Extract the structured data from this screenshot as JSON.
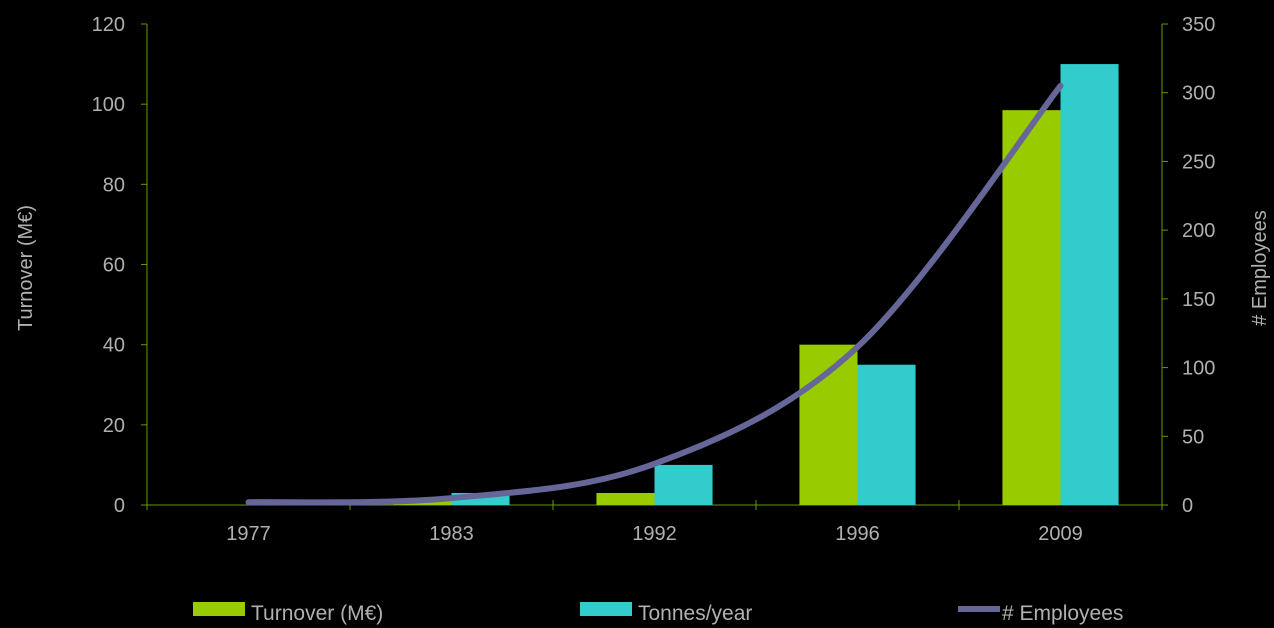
{
  "chart_data": {
    "type": "bar",
    "categories": [
      "1977",
      "1983",
      "1992",
      "1996",
      "2009"
    ],
    "series": [
      {
        "name": "Turnover (M€)",
        "type": "bar",
        "axis": "left",
        "color": "#99cc00",
        "values": [
          0,
          1,
          3,
          40,
          98.5
        ]
      },
      {
        "name": "Tonnes/year",
        "type": "bar",
        "axis": "left",
        "color": "#33cccc",
        "values": [
          0,
          3,
          10,
          35,
          110
        ]
      },
      {
        "name": "# Employees",
        "type": "line",
        "axis": "right",
        "color": "#666699",
        "values": [
          2,
          5,
          30,
          115,
          305
        ]
      }
    ],
    "ylabel": "Turnover (M€)",
    "ylabel_right": "# Employees",
    "xlabel": "",
    "ylim": [
      0,
      120
    ],
    "yticks": [
      "0",
      "20",
      "40",
      "60",
      "80",
      "100",
      "120"
    ],
    "ylim_right": [
      0,
      350
    ],
    "yticks_right": [
      "0",
      "50",
      "100",
      "150",
      "200",
      "250",
      "300",
      "350"
    ],
    "grid": false,
    "legend_position": "bottom",
    "axis_color": "#669900"
  }
}
